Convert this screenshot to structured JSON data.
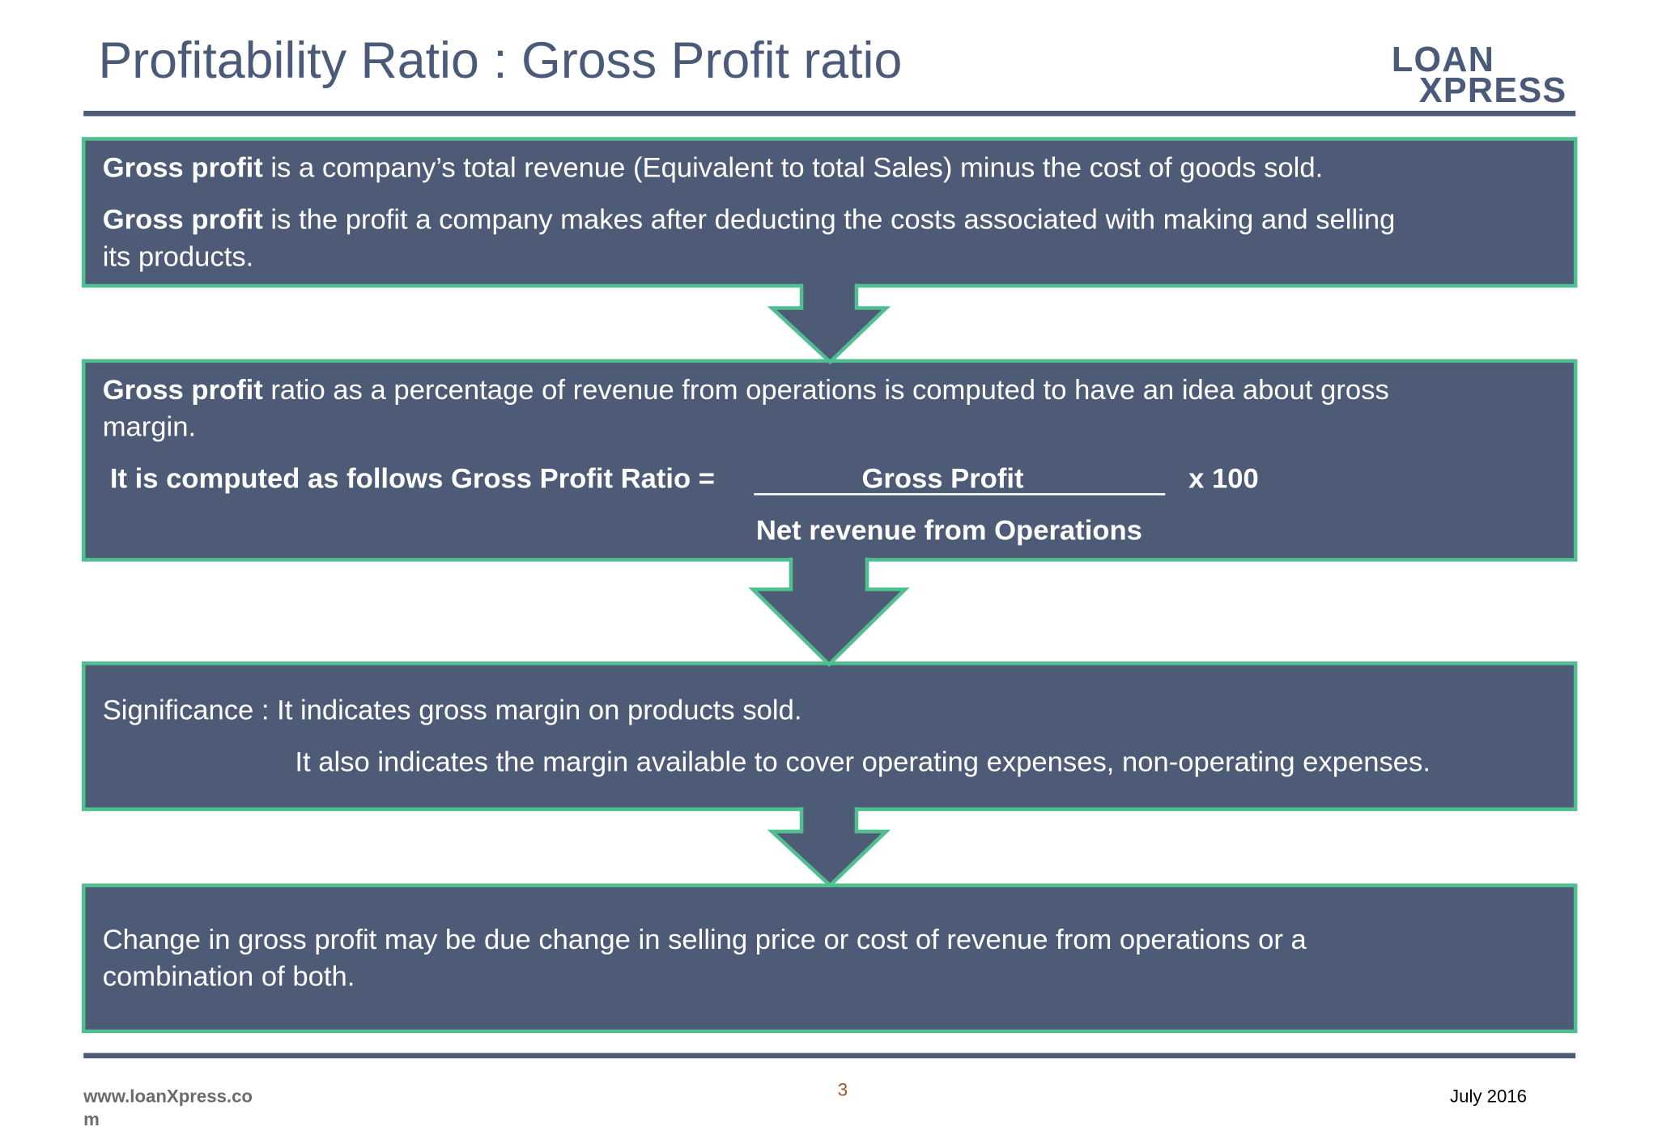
{
  "header": {
    "title": "Profitability Ratio : Gross Profit ratio",
    "logo": [
      "LOAN",
      "XPRESS"
    ]
  },
  "boxes": [
    {
      "lines": [
        {
          "bold": "Gross profit",
          "text": " is a company’s total revenue (Equivalent to total Sales) minus the cost of goods sold."
        },
        {
          "bold": "Gross profit",
          "text": " is the profit a company makes after deducting the costs associated with making and selling"
        },
        {
          "text": "its products."
        }
      ]
    },
    {
      "lines": [
        {
          "bold": "Gross profit",
          "text": " ratio as a percentage of revenue from operations is computed to have an idea about gross"
        },
        {
          "text": "margin."
        }
      ],
      "formula": {
        "label": "It is computed as follows  Gross Profit Ratio =",
        "numerator": "Gross Profit",
        "multiplier": "x  100",
        "denominator": "Net revenue from Operations"
      }
    },
    {
      "lines": [
        {
          "text": "Significance : It indicates gross margin on products sold."
        },
        {
          "text": "It also indicates the margin available to cover operating expenses, non-operating expenses."
        }
      ]
    },
    {
      "lines": [
        {
          "text": "Change in gross profit may be due change in selling price or cost of revenue from operations or a"
        },
        {
          "text": "combination of both."
        }
      ]
    }
  ],
  "footer": {
    "website": [
      "www.loanXpress.co",
      "m"
    ],
    "page": "3",
    "date": "July 2016"
  }
}
